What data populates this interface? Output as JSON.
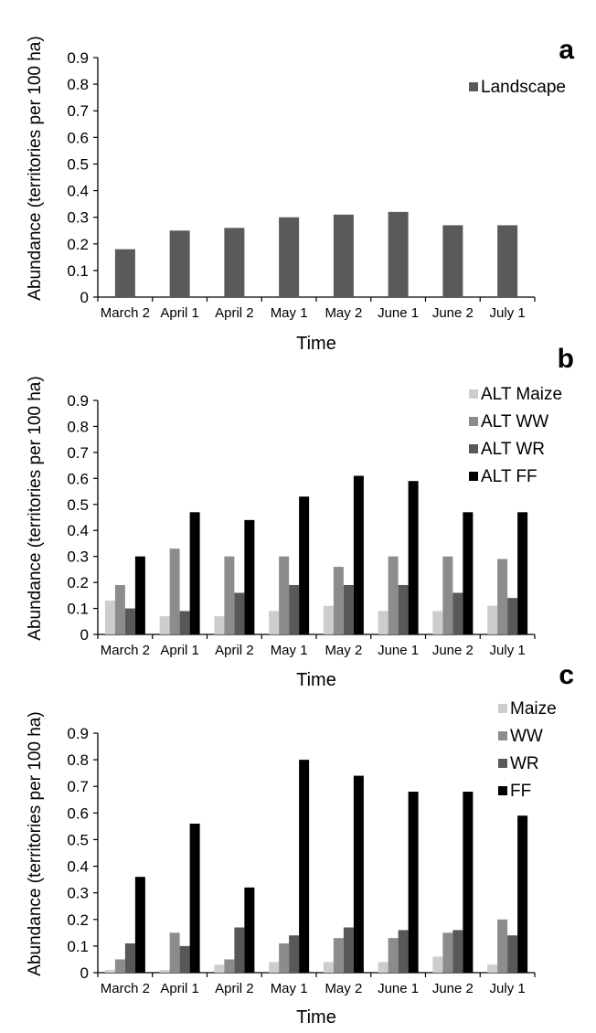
{
  "figure": {
    "panels": [
      {
        "label": "a"
      },
      {
        "label": "b"
      },
      {
        "label": "c"
      }
    ]
  },
  "chart_data": [
    {
      "type": "bar",
      "panel_label": "a",
      "xlabel": "Time",
      "ylabel": "Abundance (territories per 100 ha)",
      "ylim": [
        0,
        0.9
      ],
      "yticks": [
        "0",
        "0.1",
        "0.2",
        "0.3",
        "0.4",
        "0.5",
        "0.6",
        "0.7",
        "0.8",
        "0.9"
      ],
      "categories": [
        "March 2",
        "April 1",
        "April 2",
        "May 1",
        "May 2",
        "June 1",
        "June 2",
        "July 1"
      ],
      "legend_position": "top-right",
      "grid": false,
      "series": [
        {
          "name": "Landscape",
          "color": "#5a5a5a",
          "values": [
            0.18,
            0.25,
            0.26,
            0.3,
            0.31,
            0.32,
            0.27,
            0.27
          ]
        }
      ]
    },
    {
      "type": "bar",
      "panel_label": "b",
      "xlabel": "Time",
      "ylabel": "Abundance (territories per 100 ha)",
      "ylim": [
        0,
        0.9
      ],
      "yticks": [
        "0",
        "0.1",
        "0.2",
        "0.3",
        "0.4",
        "0.5",
        "0.6",
        "0.7",
        "0.8",
        "0.9"
      ],
      "categories": [
        "March 2",
        "April 1",
        "April 2",
        "May 1",
        "May 2",
        "June 1",
        "June 2",
        "July 1"
      ],
      "legend_position": "top-right",
      "grid": false,
      "series": [
        {
          "name": "ALT Maize",
          "color": "#cdcdcd",
          "values": [
            0.13,
            0.07,
            0.07,
            0.09,
            0.11,
            0.09,
            0.09,
            0.11
          ]
        },
        {
          "name": "ALT WW",
          "color": "#8c8c8c",
          "values": [
            0.19,
            0.33,
            0.3,
            0.3,
            0.26,
            0.3,
            0.3,
            0.29
          ]
        },
        {
          "name": "ALT WR",
          "color": "#585858",
          "values": [
            0.1,
            0.09,
            0.16,
            0.19,
            0.19,
            0.19,
            0.16,
            0.14
          ]
        },
        {
          "name": "ALT FF",
          "color": "#000000",
          "values": [
            0.3,
            0.47,
            0.44,
            0.53,
            0.61,
            0.59,
            0.47,
            0.47
          ]
        }
      ]
    },
    {
      "type": "bar",
      "panel_label": "c",
      "xlabel": "Time",
      "ylabel": "Abundance (territories per 100 ha)",
      "ylim": [
        0,
        0.9
      ],
      "yticks": [
        "0",
        "0.1",
        "0.2",
        "0.3",
        "0.4",
        "0.5",
        "0.6",
        "0.7",
        "0.8",
        "0.9"
      ],
      "categories": [
        "March 2",
        "April 1",
        "April 2",
        "May 1",
        "May 2",
        "June 1",
        "June 2",
        "July 1"
      ],
      "legend_position": "top-right",
      "grid": false,
      "series": [
        {
          "name": "Maize",
          "color": "#cdcdcd",
          "values": [
            0.01,
            0.01,
            0.03,
            0.04,
            0.04,
            0.04,
            0.06,
            0.03
          ]
        },
        {
          "name": "WW",
          "color": "#8c8c8c",
          "values": [
            0.05,
            0.15,
            0.05,
            0.11,
            0.13,
            0.13,
            0.15,
            0.2
          ]
        },
        {
          "name": "WR",
          "color": "#585858",
          "values": [
            0.11,
            0.1,
            0.17,
            0.14,
            0.17,
            0.16,
            0.16,
            0.14
          ]
        },
        {
          "name": "FF",
          "color": "#000000",
          "values": [
            0.36,
            0.56,
            0.32,
            0.8,
            0.74,
            0.68,
            0.68,
            0.59
          ]
        }
      ]
    }
  ]
}
